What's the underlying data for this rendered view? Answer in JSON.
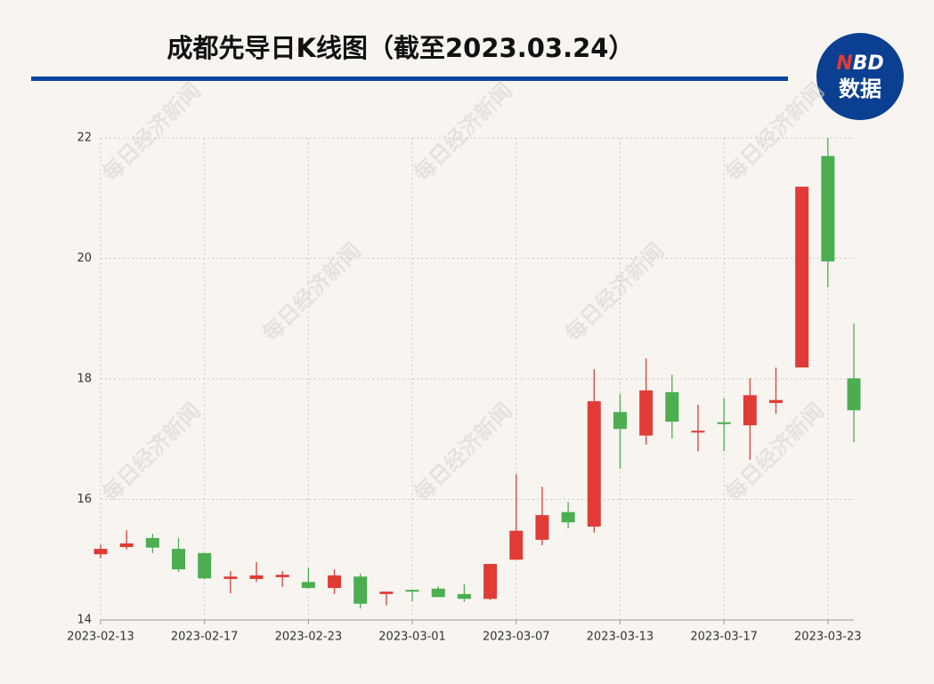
{
  "chart_data": {
    "type": "candlestick",
    "title": "成都先导日K线图（截至2023.03.24）",
    "watermark": "每日经济新闻",
    "logo": [
      "N",
      "BD",
      "数据"
    ],
    "categories": [
      "2023-02-13",
      null,
      null,
      null,
      "2023-02-17",
      null,
      null,
      null,
      "2023-02-23",
      null,
      null,
      null,
      "2023-03-01",
      null,
      null,
      null,
      "2023-03-07",
      null,
      null,
      null,
      "2023-03-13",
      null,
      null,
      null,
      "2023-03-17",
      null,
      null,
      null,
      "2023-03-23",
      null
    ],
    "open": [
      15.09,
      15.21,
      15.36,
      15.18,
      15.11,
      14.68,
      14.68,
      14.71,
      14.63,
      14.53,
      14.72,
      14.43,
      14.5,
      14.52,
      14.43,
      14.35,
      15.0,
      15.33,
      15.79,
      15.55,
      17.45,
      17.06,
      17.78,
      17.11,
      17.28,
      17.23,
      17.6,
      18.19,
      21.7,
      18.01
    ],
    "high": [
      15.25,
      15.49,
      15.43,
      15.36,
      15.11,
      14.81,
      14.96,
      14.81,
      14.87,
      14.84,
      14.77,
      14.47,
      14.5,
      14.56,
      14.59,
      14.93,
      16.42,
      16.21,
      15.96,
      18.16,
      17.75,
      18.34,
      18.07,
      17.57,
      17.68,
      18.01,
      18.19,
      21.19,
      22.0,
      18.92
    ],
    "low": [
      15.02,
      15.17,
      15.11,
      14.8,
      14.68,
      14.44,
      14.63,
      14.55,
      14.52,
      14.43,
      14.19,
      14.24,
      14.31,
      14.38,
      14.3,
      14.33,
      15.0,
      15.24,
      15.52,
      15.45,
      16.51,
      16.91,
      17.01,
      16.8,
      16.8,
      16.66,
      17.42,
      18.19,
      19.52,
      16.95
    ],
    "close": [
      15.18,
      15.27,
      15.2,
      14.84,
      14.69,
      14.72,
      14.74,
      14.75,
      14.53,
      14.74,
      14.27,
      14.47,
      14.47,
      14.38,
      14.35,
      14.93,
      15.48,
      15.74,
      15.62,
      17.63,
      17.17,
      17.81,
      17.29,
      17.14,
      17.25,
      17.73,
      17.65,
      21.19,
      19.95,
      17.48
    ],
    "up_color": "#e03c35",
    "down_color": "#4cae50",
    "ylim": [
      14,
      22
    ],
    "yticks": [
      14,
      16,
      18,
      20,
      22
    ],
    "grid": true
  }
}
